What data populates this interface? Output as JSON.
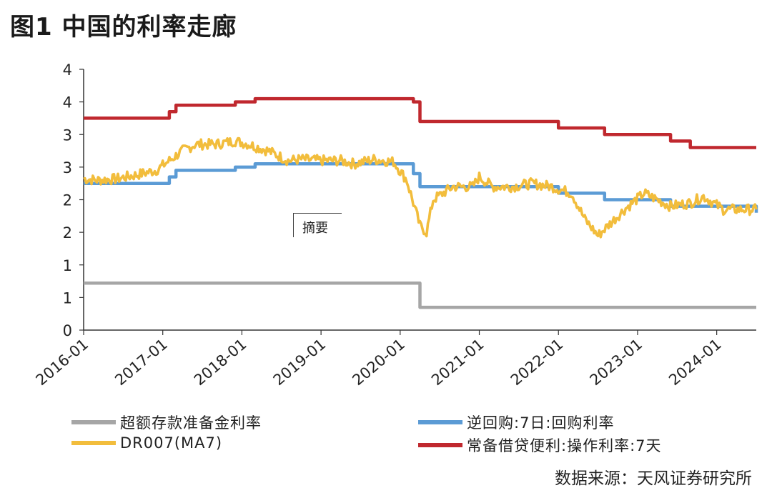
{
  "title": "图1  中国的利率走廊",
  "source": "数据来源：天风证券研究所",
  "annotation": "摘要",
  "chart_data": {
    "type": "line",
    "title": "图1  中国的利率走廊",
    "y_tick_labels": [
      "0",
      "1",
      "1",
      "2",
      "2",
      "3",
      "3",
      "4",
      "4"
    ],
    "y_tick_values": [
      0,
      0.5,
      1.0,
      1.5,
      2.0,
      2.5,
      3.0,
      3.5,
      4.0
    ],
    "ylim": [
      0,
      4.0
    ],
    "xlim": [
      "2016-01",
      "2024-07"
    ],
    "x_tick_labels": [
      "2016-01",
      "2017-01",
      "2018-01",
      "2019-01",
      "2020-01",
      "2021-01",
      "2022-01",
      "2023-01",
      "2024-01"
    ],
    "grid": false,
    "legend_placement": "bottom",
    "series": [
      {
        "name": "超额存款准备金利率",
        "color": "#a6a6a6",
        "style": "step",
        "points": [
          [
            "2016-01",
            0.72
          ],
          [
            "2020-04",
            0.72
          ],
          [
            "2020-04",
            0.35
          ],
          [
            "2024-07",
            0.35
          ]
        ]
      },
      {
        "name": "逆回购:7日:回购利率",
        "color": "#5b9bd5",
        "style": "step",
        "points": [
          [
            "2016-01",
            2.25
          ],
          [
            "2017-02",
            2.25
          ],
          [
            "2017-02",
            2.35
          ],
          [
            "2017-03",
            2.35
          ],
          [
            "2017-03",
            2.45
          ],
          [
            "2017-12",
            2.45
          ],
          [
            "2017-12",
            2.5
          ],
          [
            "2018-03",
            2.5
          ],
          [
            "2018-03",
            2.55
          ],
          [
            "2020-03",
            2.55
          ],
          [
            "2020-03",
            2.4
          ],
          [
            "2020-04",
            2.4
          ],
          [
            "2020-04",
            2.2
          ],
          [
            "2022-01",
            2.2
          ],
          [
            "2022-01",
            2.1
          ],
          [
            "2022-08",
            2.1
          ],
          [
            "2022-08",
            2.0
          ],
          [
            "2023-06",
            2.0
          ],
          [
            "2023-06",
            1.9
          ],
          [
            "2024-07",
            1.9
          ],
          [
            "2024-07",
            1.8
          ]
        ]
      },
      {
        "name": "DR007(MA7)",
        "color": "#f2bd3c",
        "style": "noisy",
        "points": [
          [
            "2016-01",
            2.32
          ],
          [
            "2016-03",
            2.3
          ],
          [
            "2016-06",
            2.32
          ],
          [
            "2016-09",
            2.38
          ],
          [
            "2016-12",
            2.45
          ],
          [
            "2017-02",
            2.6
          ],
          [
            "2017-04",
            2.75
          ],
          [
            "2017-06",
            2.85
          ],
          [
            "2017-09",
            2.85
          ],
          [
            "2017-12",
            2.9
          ],
          [
            "2018-02",
            2.85
          ],
          [
            "2018-05",
            2.75
          ],
          [
            "2018-08",
            2.6
          ],
          [
            "2018-10",
            2.62
          ],
          [
            "2019-01",
            2.6
          ],
          [
            "2019-04",
            2.6
          ],
          [
            "2019-06",
            2.55
          ],
          [
            "2019-09",
            2.62
          ],
          [
            "2019-12",
            2.58
          ],
          [
            "2020-02",
            2.3
          ],
          [
            "2020-04",
            1.6
          ],
          [
            "2020-05",
            1.5
          ],
          [
            "2020-06",
            2.0
          ],
          [
            "2020-09",
            2.2
          ],
          [
            "2020-12",
            2.2
          ],
          [
            "2021-01",
            2.35
          ],
          [
            "2021-03",
            2.2
          ],
          [
            "2021-06",
            2.2
          ],
          [
            "2021-09",
            2.25
          ],
          [
            "2021-12",
            2.2
          ],
          [
            "2022-03",
            2.1
          ],
          [
            "2022-05",
            1.7
          ],
          [
            "2022-07",
            1.45
          ],
          [
            "2022-09",
            1.65
          ],
          [
            "2022-11",
            1.85
          ],
          [
            "2023-02",
            2.1
          ],
          [
            "2023-04",
            2.0
          ],
          [
            "2023-06",
            1.9
          ],
          [
            "2023-09",
            1.95
          ],
          [
            "2023-11",
            2.05
          ],
          [
            "2024-02",
            1.85
          ],
          [
            "2024-05",
            1.85
          ],
          [
            "2024-07",
            1.85
          ]
        ]
      },
      {
        "name": "常备借贷便利:操作利率:7天",
        "color": "#c0282e",
        "style": "step",
        "points": [
          [
            "2016-01",
            3.25
          ],
          [
            "2017-02",
            3.25
          ],
          [
            "2017-02",
            3.35
          ],
          [
            "2017-03",
            3.35
          ],
          [
            "2017-03",
            3.45
          ],
          [
            "2017-12",
            3.45
          ],
          [
            "2017-12",
            3.5
          ],
          [
            "2018-03",
            3.5
          ],
          [
            "2018-03",
            3.55
          ],
          [
            "2020-03",
            3.55
          ],
          [
            "2020-03",
            3.5
          ],
          [
            "2020-04",
            3.5
          ],
          [
            "2020-04",
            3.2
          ],
          [
            "2022-01",
            3.2
          ],
          [
            "2022-01",
            3.1
          ],
          [
            "2022-08",
            3.1
          ],
          [
            "2022-08",
            3.0
          ],
          [
            "2023-06",
            3.0
          ],
          [
            "2023-06",
            2.9
          ],
          [
            "2023-09",
            2.9
          ],
          [
            "2023-09",
            2.8
          ],
          [
            "2024-07",
            2.8
          ]
        ]
      }
    ]
  }
}
